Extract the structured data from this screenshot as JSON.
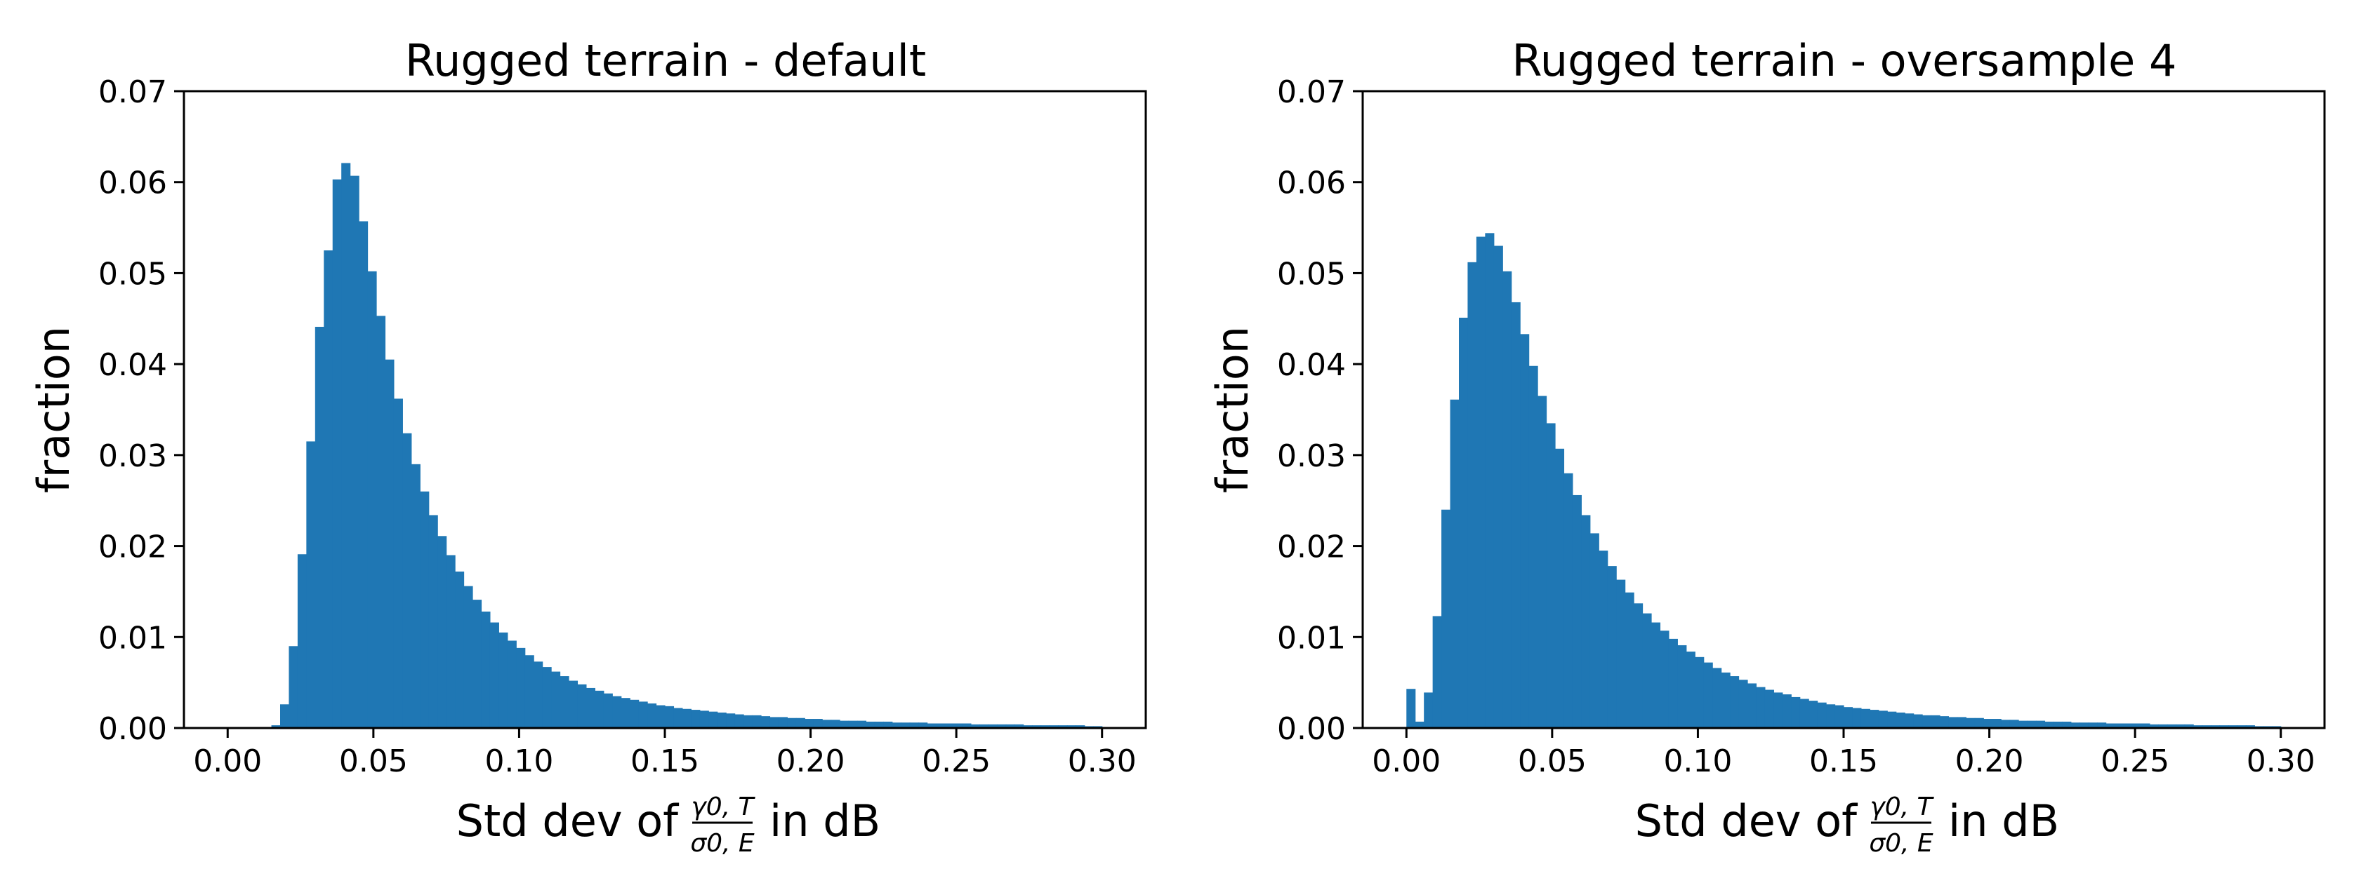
{
  "chart_data": [
    {
      "type": "bar",
      "title": "Rugged terrain - default",
      "ylabel": "fraction",
      "xlabel": {
        "prefix": "Std dev of",
        "numerator": "γ0, T",
        "denominator": "σ0, E",
        "suffix": "in dB"
      },
      "xlim": [
        -0.015,
        0.315
      ],
      "ylim": [
        0,
        0.07
      ],
      "xticks": [
        "0.00",
        "0.05",
        "0.10",
        "0.15",
        "0.20",
        "0.25",
        "0.30"
      ],
      "yticks": [
        "0.00",
        "0.01",
        "0.02",
        "0.03",
        "0.04",
        "0.05",
        "0.06",
        "0.07"
      ],
      "bin_start": 0.0,
      "bin_width": 0.003,
      "values": [
        0,
        0,
        0,
        0,
        0,
        0.0003,
        0.0026,
        0.009,
        0.0191,
        0.0315,
        0.0441,
        0.0525,
        0.0603,
        0.0621,
        0.0607,
        0.0557,
        0.0502,
        0.0453,
        0.0405,
        0.0362,
        0.0324,
        0.029,
        0.026,
        0.0234,
        0.0211,
        0.019,
        0.0172,
        0.0156,
        0.0141,
        0.0128,
        0.0116,
        0.0105,
        0.0096,
        0.0088,
        0.008,
        0.0073,
        0.0067,
        0.0062,
        0.0057,
        0.0052,
        0.0048,
        0.0044,
        0.0041,
        0.0038,
        0.0035,
        0.0033,
        0.0031,
        0.0029,
        0.0027,
        0.0025,
        0.0024,
        0.0022,
        0.0021,
        0.002,
        0.0019,
        0.0018,
        0.0017,
        0.0016,
        0.0015,
        0.0014,
        0.0014,
        0.0013,
        0.0012,
        0.0012,
        0.0011,
        0.0011,
        0.001,
        0.001,
        0.0009,
        0.0009,
        0.0008,
        0.0008,
        0.0008,
        0.0007,
        0.0007,
        0.0007,
        0.0006,
        0.0006,
        0.0006,
        0.0006,
        0.0005,
        0.0005,
        0.0005,
        0.0005,
        0.0005,
        0.0004,
        0.0004,
        0.0004,
        0.0004,
        0.0004,
        0.0004,
        0.0003,
        0.0003,
        0.0003,
        0.0003,
        0.0003,
        0.0003,
        0.0003,
        0.0002,
        0.0002
      ],
      "grid": false
    },
    {
      "type": "bar",
      "title": "Rugged terrain - oversample 4",
      "ylabel": "fraction",
      "xlabel": {
        "prefix": "Std dev of",
        "numerator": "γ0, T",
        "denominator": "σ0, E",
        "suffix": "in dB"
      },
      "xlim": [
        -0.015,
        0.315
      ],
      "ylim": [
        0,
        0.07
      ],
      "xticks": [
        "0.00",
        "0.05",
        "0.10",
        "0.15",
        "0.20",
        "0.25",
        "0.30"
      ],
      "yticks": [
        "0.00",
        "0.01",
        "0.02",
        "0.03",
        "0.04",
        "0.05",
        "0.06",
        "0.07"
      ],
      "bin_start": 0.0,
      "bin_width": 0.003,
      "values": [
        0.0043,
        0.0007,
        0.0039,
        0.0123,
        0.024,
        0.0361,
        0.0451,
        0.0512,
        0.054,
        0.0544,
        0.053,
        0.0502,
        0.0468,
        0.0433,
        0.0398,
        0.0365,
        0.0335,
        0.0307,
        0.028,
        0.0256,
        0.0234,
        0.0214,
        0.0195,
        0.0178,
        0.0163,
        0.0149,
        0.0137,
        0.0126,
        0.0116,
        0.0107,
        0.0098,
        0.0091,
        0.0084,
        0.0078,
        0.0072,
        0.0066,
        0.0061,
        0.0057,
        0.0053,
        0.0049,
        0.0045,
        0.0042,
        0.0039,
        0.0037,
        0.0034,
        0.0032,
        0.003,
        0.0028,
        0.0026,
        0.0025,
        0.0023,
        0.0022,
        0.0021,
        0.002,
        0.0019,
        0.0018,
        0.0017,
        0.0016,
        0.0015,
        0.0014,
        0.0014,
        0.0013,
        0.0012,
        0.0012,
        0.0011,
        0.0011,
        0.001,
        0.001,
        0.0009,
        0.0009,
        0.0008,
        0.0008,
        0.0008,
        0.0007,
        0.0007,
        0.0007,
        0.0006,
        0.0006,
        0.0006,
        0.0006,
        0.0005,
        0.0005,
        0.0005,
        0.0005,
        0.0005,
        0.0004,
        0.0004,
        0.0004,
        0.0004,
        0.0004,
        0.0003,
        0.0003,
        0.0003,
        0.0003,
        0.0003,
        0.0003,
        0.0003,
        0.0002,
        0.0002,
        0.0002
      ],
      "grid": false
    }
  ]
}
